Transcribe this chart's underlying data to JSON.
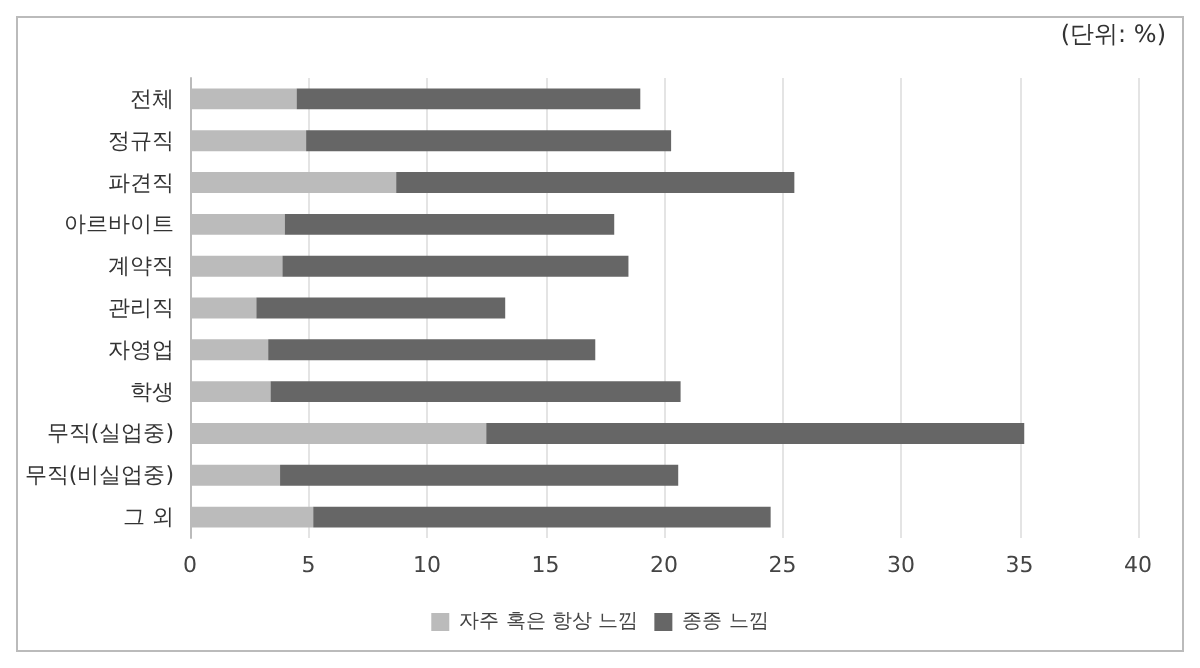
{
  "chart_data": {
    "type": "bar",
    "orientation": "horizontal",
    "stacked": true,
    "categories": [
      "전체",
      "정규직",
      "파견직",
      "아르바이트",
      "계약직",
      "관리직",
      "자영업",
      "학생",
      "무직(실업중)",
      "무직(비실업중)",
      "그 외"
    ],
    "series": [
      {
        "name": "자주 혹은 항상 느낌",
        "color": "#bbbbbb",
        "values": [
          4.5,
          4.9,
          8.7,
          4.0,
          3.9,
          2.8,
          3.3,
          3.4,
          12.5,
          3.8,
          5.2
        ]
      },
      {
        "name": "종종 느낌",
        "color": "#666666",
        "values": [
          14.5,
          15.4,
          16.8,
          13.9,
          14.6,
          10.5,
          13.8,
          17.3,
          22.7,
          16.8,
          19.3
        ]
      }
    ],
    "xlim": [
      0,
      40
    ],
    "xticks": [
      0,
      5,
      10,
      15,
      20,
      25,
      30,
      35,
      40
    ],
    "grid": "x",
    "legend": "bottom",
    "annotations": [
      "(단위: %)"
    ]
  }
}
